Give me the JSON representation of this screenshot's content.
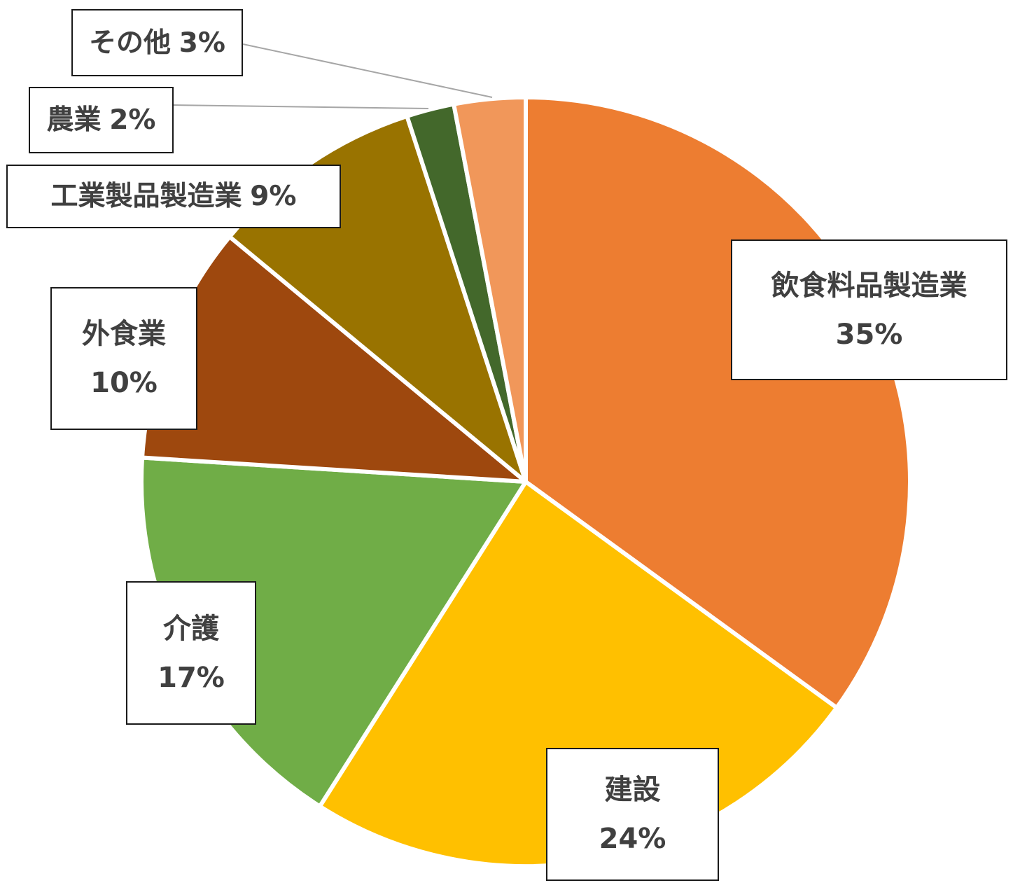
{
  "chart_data": {
    "type": "pie",
    "categories": [
      "飲食料品製造業",
      "建設",
      "介護",
      "外食業",
      "工業製品製造業",
      "農業",
      "その他"
    ],
    "values": [
      35,
      24,
      17,
      10,
      9,
      2,
      3
    ],
    "value_labels": [
      "35%",
      "24%",
      "17%",
      "10%",
      "9%",
      "2%",
      "3%"
    ],
    "colors": [
      "#ED7D31",
      "#FFC000",
      "#70AD47",
      "#9E480E",
      "#997300",
      "#43682B",
      "#F1975A"
    ],
    "start_angle_deg": 0,
    "direction": "clockwise",
    "title": "",
    "legend": "none"
  }
}
